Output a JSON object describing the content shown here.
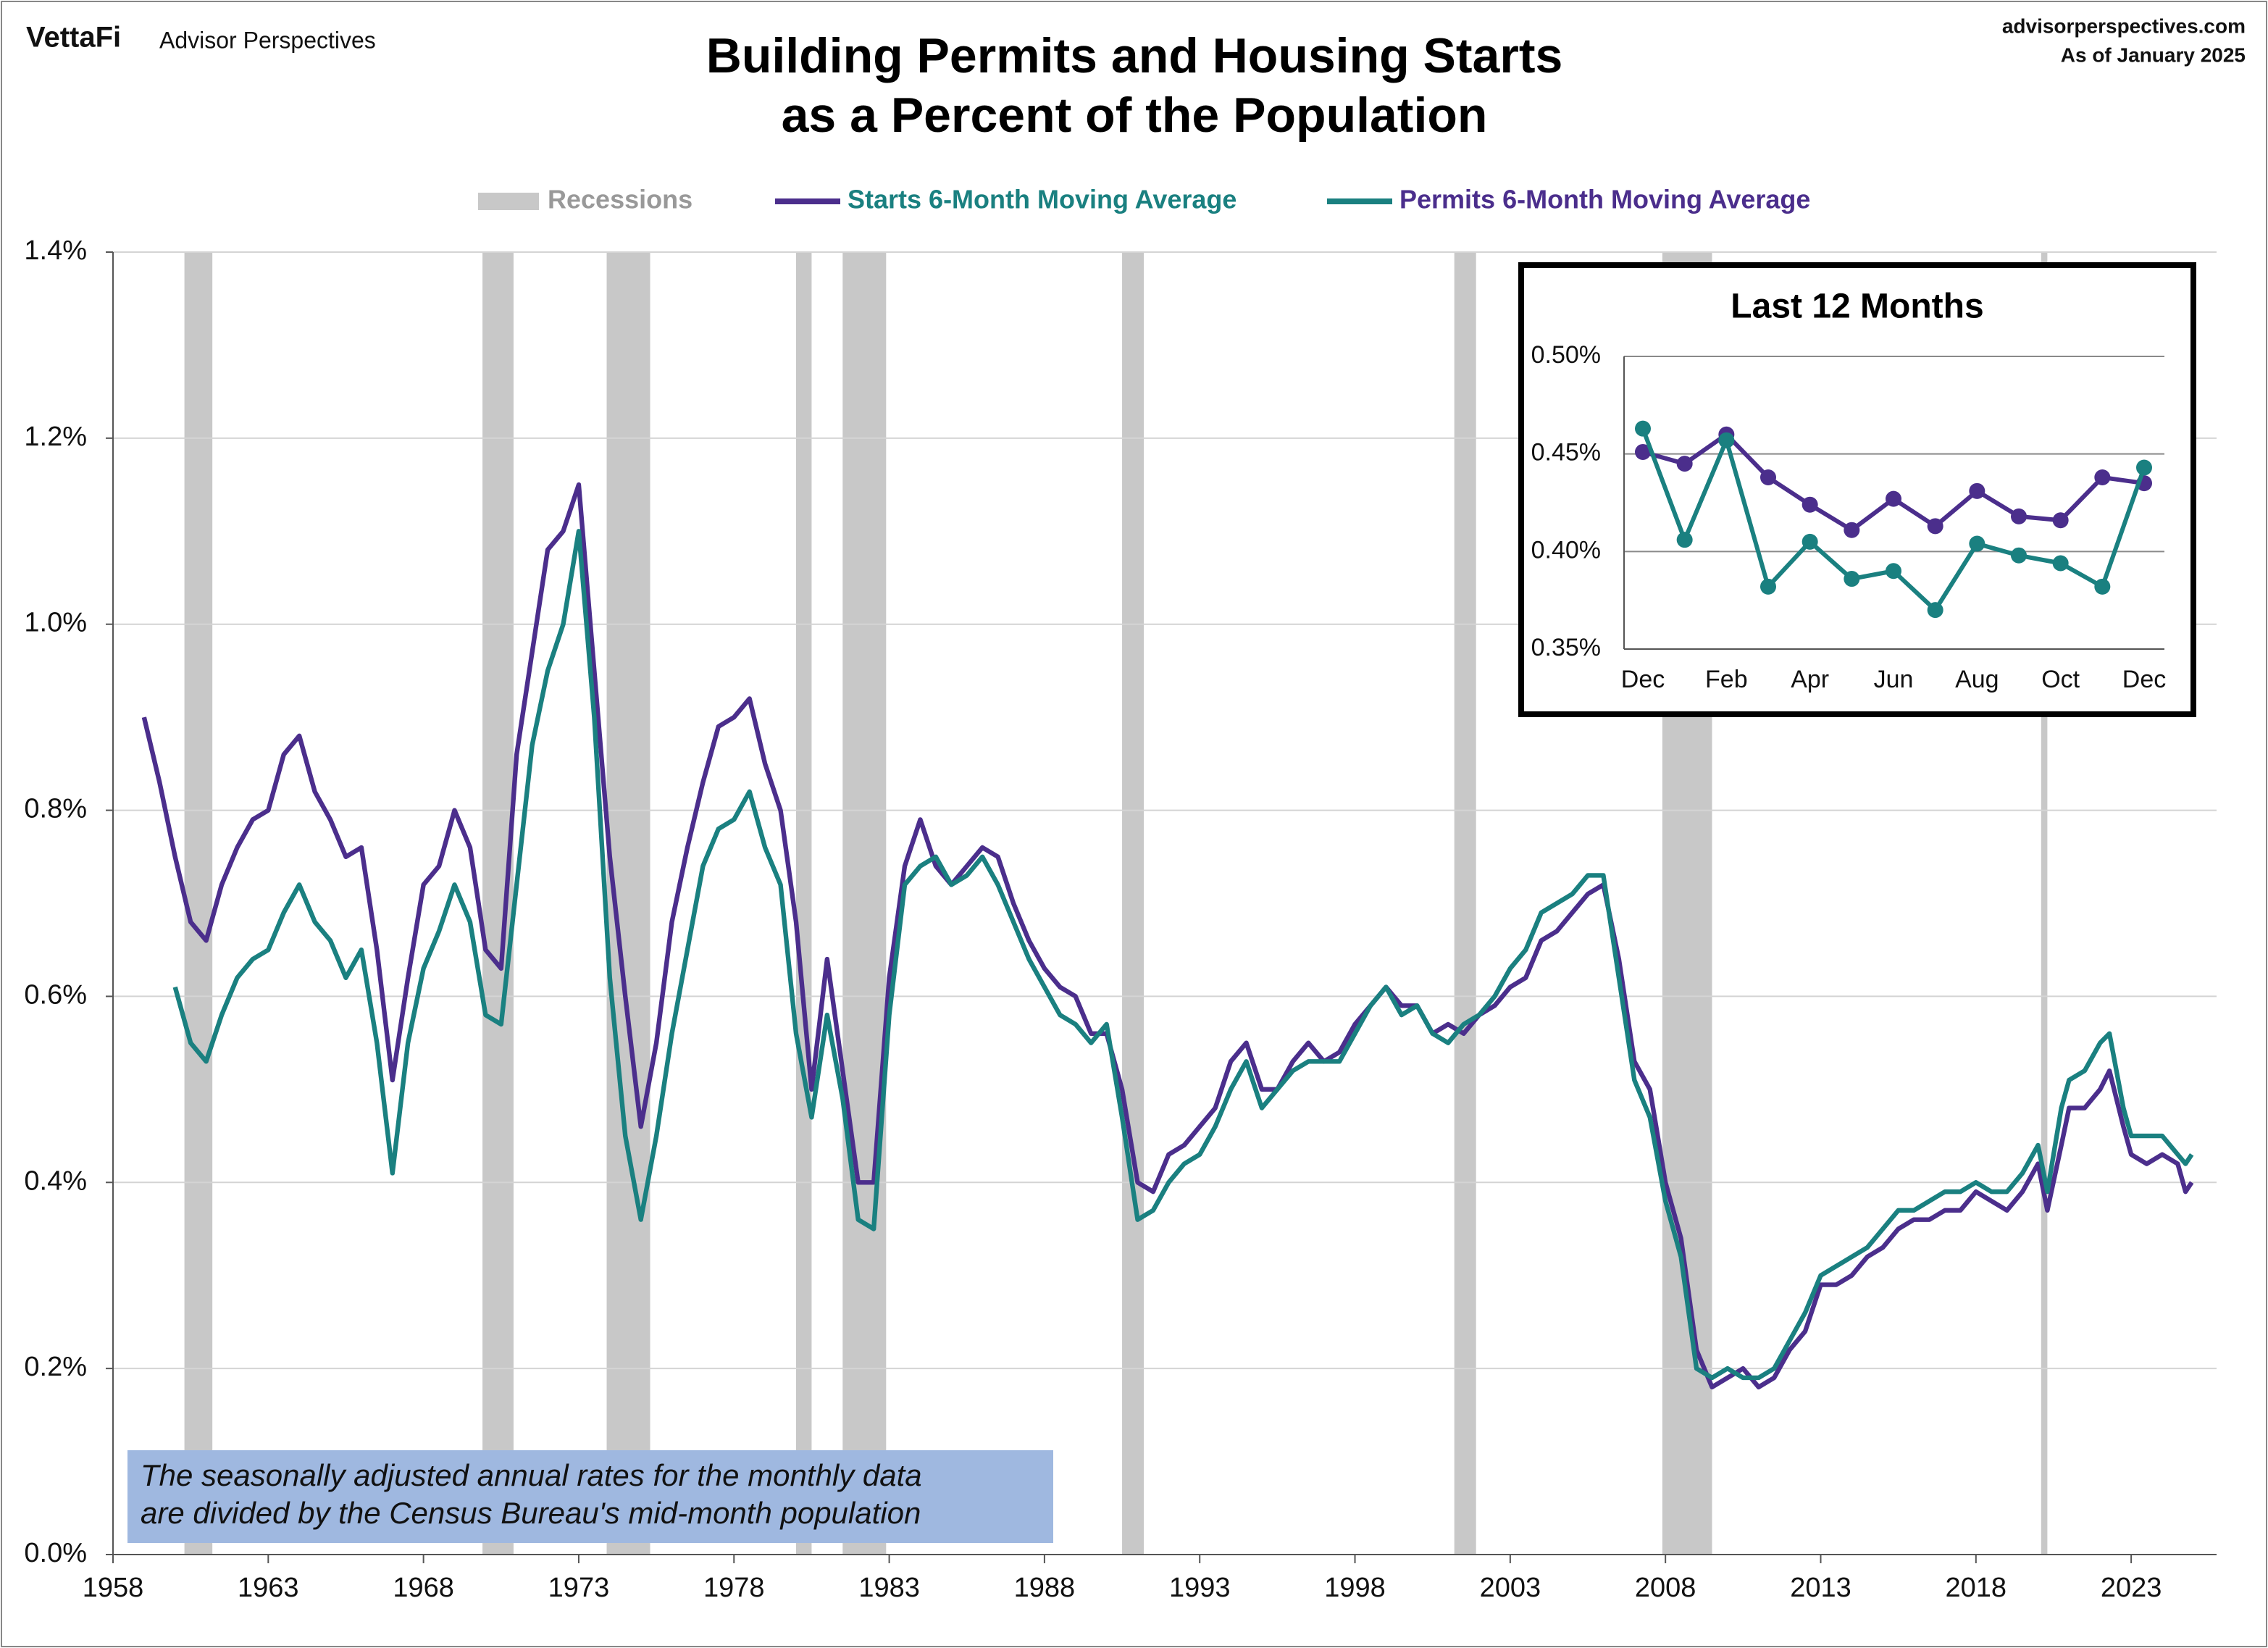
{
  "header": {
    "brand": "VettaFi",
    "publisher": "Advisor Perspectives",
    "site": "advisorperspectives.com",
    "date": "As of January 2025"
  },
  "chart_data": [
    {
      "type": "line",
      "title": [
        "Building Permits and Housing Starts",
        "as a Percent of the Population"
      ],
      "note": [
        "The seasonally adjusted annual rates for the monthly data",
        "are divided by the Census Bureau's mid-month population"
      ],
      "xlim": [
        1958,
        2025.75
      ],
      "xticks": [
        1958,
        1963,
        1968,
        1973,
        1978,
        1983,
        1988,
        1993,
        1998,
        2003,
        2008,
        2013,
        2018,
        2023
      ],
      "ylim": [
        0,
        1.4
      ],
      "yticks": [
        {
          "value": 0,
          "label": "0.0%"
        },
        {
          "value": 0.2,
          "label": "0.2%"
        },
        {
          "value": 0.4,
          "label": "0.4%"
        },
        {
          "value": 0.6,
          "label": "0.6%"
        },
        {
          "value": 0.8,
          "label": "0.8%"
        },
        {
          "value": 1.0,
          "label": "1.0%"
        },
        {
          "value": 1.2,
          "label": "1.2%"
        },
        {
          "value": 1.4,
          "label": "1.4%"
        }
      ],
      "grid": true,
      "legend": "top",
      "recessions": {
        "name": "Recessions",
        "color": "#c8c8c8",
        "spans": [
          [
            1960.3,
            1961.2
          ],
          [
            1969.9,
            1970.9
          ],
          [
            1973.9,
            1975.3
          ],
          [
            1980.0,
            1980.5
          ],
          [
            1981.5,
            1982.9
          ],
          [
            1990.5,
            1991.2
          ],
          [
            2001.2,
            2001.9
          ],
          [
            2007.9,
            2009.5
          ],
          [
            2020.1,
            2020.3
          ]
        ]
      },
      "series": [
        {
          "name": "Starts 6-Month Moving Average",
          "color": "#4b2e8c",
          "legend_text_color": "#1a8080",
          "x": [
            1959.0,
            1959.5,
            1960.0,
            1960.5,
            1961.0,
            1961.5,
            1962.0,
            1962.5,
            1963.0,
            1963.5,
            1964.0,
            1964.5,
            1965.0,
            1965.5,
            1966.0,
            1966.5,
            1967.0,
            1967.5,
            1968.0,
            1968.5,
            1969.0,
            1969.5,
            1970.0,
            1970.5,
            1971.0,
            1971.5,
            1972.0,
            1972.5,
            1973.0,
            1973.5,
            1974.0,
            1974.5,
            1975.0,
            1975.5,
            1976.0,
            1976.5,
            1977.0,
            1977.5,
            1978.0,
            1978.5,
            1979.0,
            1979.5,
            1980.0,
            1980.5,
            1981.0,
            1981.5,
            1982.0,
            1982.5,
            1983.0,
            1983.5,
            1984.0,
            1984.5,
            1985.0,
            1985.5,
            1986.0,
            1986.5,
            1987.0,
            1987.5,
            1988.0,
            1988.5,
            1989.0,
            1989.5,
            1990.0,
            1990.5,
            1991.0,
            1991.5,
            1992.0,
            1992.5,
            1993.0,
            1993.5,
            1994.0,
            1994.5,
            1995.0,
            1995.5,
            1996.0,
            1996.5,
            1997.0,
            1997.5,
            1998.0,
            1998.5,
            1999.0,
            1999.5,
            2000.0,
            2000.5,
            2001.0,
            2001.5,
            2002.0,
            2002.5,
            2003.0,
            2003.5,
            2004.0,
            2004.5,
            2005.0,
            2005.5,
            2006.0,
            2006.5,
            2007.0,
            2007.5,
            2008.0,
            2008.5,
            2009.0,
            2009.5,
            2010.0,
            2010.5,
            2011.0,
            2011.5,
            2012.0,
            2012.5,
            2013.0,
            2013.5,
            2014.0,
            2014.5,
            2015.0,
            2015.5,
            2016.0,
            2016.5,
            2017.0,
            2017.5,
            2018.0,
            2018.5,
            2019.0,
            2019.5,
            2020.0,
            2020.3,
            2020.75,
            2021.0,
            2021.5,
            2022.0,
            2022.3,
            2022.75,
            2023.0,
            2023.5,
            2024.0,
            2024.5,
            2024.75,
            2024.95
          ],
          "values": [
            0.9,
            0.83,
            0.75,
            0.68,
            0.66,
            0.72,
            0.76,
            0.79,
            0.8,
            0.86,
            0.88,
            0.82,
            0.79,
            0.75,
            0.76,
            0.65,
            0.51,
            0.62,
            0.72,
            0.74,
            0.8,
            0.76,
            0.65,
            0.63,
            0.86,
            0.97,
            1.08,
            1.1,
            1.15,
            0.95,
            0.75,
            0.6,
            0.46,
            0.55,
            0.68,
            0.76,
            0.83,
            0.89,
            0.9,
            0.92,
            0.85,
            0.8,
            0.68,
            0.5,
            0.64,
            0.52,
            0.4,
            0.4,
            0.62,
            0.74,
            0.79,
            0.74,
            0.72,
            0.74,
            0.76,
            0.75,
            0.7,
            0.66,
            0.63,
            0.61,
            0.6,
            0.56,
            0.56,
            0.5,
            0.4,
            0.39,
            0.43,
            0.44,
            0.46,
            0.48,
            0.53,
            0.55,
            0.5,
            0.5,
            0.53,
            0.55,
            0.53,
            0.54,
            0.57,
            0.59,
            0.61,
            0.59,
            0.59,
            0.56,
            0.57,
            0.56,
            0.58,
            0.59,
            0.61,
            0.62,
            0.66,
            0.67,
            0.69,
            0.71,
            0.72,
            0.64,
            0.53,
            0.5,
            0.4,
            0.34,
            0.22,
            0.18,
            0.19,
            0.2,
            0.18,
            0.19,
            0.22,
            0.24,
            0.29,
            0.29,
            0.3,
            0.32,
            0.33,
            0.35,
            0.36,
            0.36,
            0.37,
            0.37,
            0.39,
            0.38,
            0.37,
            0.39,
            0.42,
            0.37,
            0.44,
            0.48,
            0.48,
            0.5,
            0.52,
            0.46,
            0.43,
            0.42,
            0.43,
            0.42,
            0.39,
            0.4
          ]
        },
        {
          "name": "Permits 6-Month Moving Average",
          "color": "#1a8080",
          "legend_text_color": "#4b2e8c",
          "x": [
            1960.0,
            1960.5,
            1961.0,
            1961.5,
            1962.0,
            1962.5,
            1963.0,
            1963.5,
            1964.0,
            1964.5,
            1965.0,
            1965.5,
            1966.0,
            1966.5,
            1967.0,
            1967.5,
            1968.0,
            1968.5,
            1969.0,
            1969.5,
            1970.0,
            1970.5,
            1971.0,
            1971.5,
            1972.0,
            1972.5,
            1973.0,
            1973.5,
            1974.0,
            1974.5,
            1975.0,
            1975.5,
            1976.0,
            1976.5,
            1977.0,
            1977.5,
            1978.0,
            1978.5,
            1979.0,
            1979.5,
            1980.0,
            1980.5,
            1981.0,
            1981.5,
            1982.0,
            1982.5,
            1983.0,
            1983.5,
            1984.0,
            1984.5,
            1985.0,
            1985.5,
            1986.0,
            1986.5,
            1987.0,
            1987.5,
            1988.0,
            1988.5,
            1989.0,
            1989.5,
            1990.0,
            1990.5,
            1991.0,
            1991.5,
            1992.0,
            1992.5,
            1993.0,
            1993.5,
            1994.0,
            1994.5,
            1995.0,
            1995.5,
            1996.0,
            1996.5,
            1997.0,
            1997.5,
            1998.0,
            1998.5,
            1999.0,
            1999.5,
            2000.0,
            2000.5,
            2001.0,
            2001.5,
            2002.0,
            2002.5,
            2003.0,
            2003.5,
            2004.0,
            2004.5,
            2005.0,
            2005.5,
            2006.0,
            2006.5,
            2007.0,
            2007.5,
            2008.0,
            2008.5,
            2009.0,
            2009.5,
            2010.0,
            2010.5,
            2011.0,
            2011.5,
            2012.0,
            2012.5,
            2013.0,
            2013.5,
            2014.0,
            2014.5,
            2015.0,
            2015.5,
            2016.0,
            2016.5,
            2017.0,
            2017.5,
            2018.0,
            2018.5,
            2019.0,
            2019.5,
            2020.0,
            2020.3,
            2020.75,
            2021.0,
            2021.5,
            2022.0,
            2022.3,
            2022.75,
            2023.0,
            2023.5,
            2024.0,
            2024.5,
            2024.75,
            2024.95
          ],
          "values": [
            0.61,
            0.55,
            0.53,
            0.58,
            0.62,
            0.64,
            0.65,
            0.69,
            0.72,
            0.68,
            0.66,
            0.62,
            0.65,
            0.55,
            0.41,
            0.55,
            0.63,
            0.67,
            0.72,
            0.68,
            0.58,
            0.57,
            0.72,
            0.87,
            0.95,
            1.0,
            1.1,
            0.9,
            0.62,
            0.45,
            0.36,
            0.45,
            0.56,
            0.65,
            0.74,
            0.78,
            0.79,
            0.82,
            0.76,
            0.72,
            0.56,
            0.47,
            0.58,
            0.49,
            0.36,
            0.35,
            0.58,
            0.72,
            0.74,
            0.75,
            0.72,
            0.73,
            0.75,
            0.72,
            0.68,
            0.64,
            0.61,
            0.58,
            0.57,
            0.55,
            0.57,
            0.47,
            0.36,
            0.37,
            0.4,
            0.42,
            0.43,
            0.46,
            0.5,
            0.53,
            0.48,
            0.5,
            0.52,
            0.53,
            0.53,
            0.53,
            0.56,
            0.59,
            0.61,
            0.58,
            0.59,
            0.56,
            0.55,
            0.57,
            0.58,
            0.6,
            0.63,
            0.65,
            0.69,
            0.7,
            0.71,
            0.73,
            0.73,
            0.62,
            0.51,
            0.47,
            0.38,
            0.32,
            0.2,
            0.19,
            0.2,
            0.19,
            0.19,
            0.2,
            0.23,
            0.26,
            0.3,
            0.31,
            0.32,
            0.33,
            0.35,
            0.37,
            0.37,
            0.38,
            0.39,
            0.39,
            0.4,
            0.39,
            0.39,
            0.41,
            0.44,
            0.39,
            0.48,
            0.51,
            0.52,
            0.55,
            0.56,
            0.48,
            0.45,
            0.45,
            0.45,
            0.43,
            0.42,
            0.43
          ]
        }
      ]
    },
    {
      "type": "line",
      "title": "Last 12 Months",
      "categories": [
        "Dec",
        null,
        "Feb",
        null,
        "Apr",
        null,
        "Jun",
        null,
        "Aug",
        null,
        "Oct",
        null,
        "Dec"
      ],
      "ylim": [
        0.35,
        0.5
      ],
      "yticks": [
        {
          "value": 0.35,
          "label": "0.35%"
        },
        {
          "value": 0.4,
          "label": "0.40%"
        },
        {
          "value": 0.45,
          "label": "0.45%"
        },
        {
          "value": 0.5,
          "label": "0.50%"
        }
      ],
      "grid": true,
      "markers": true,
      "series": [
        {
          "color": "#4b2e8c",
          "values": [
            0.451,
            0.445,
            0.46,
            0.438,
            0.424,
            0.411,
            0.427,
            0.413,
            0.431,
            0.418,
            0.416,
            0.438,
            0.435
          ]
        },
        {
          "color": "#1a8080",
          "values": [
            0.463,
            0.406,
            0.457,
            0.382,
            0.405,
            0.386,
            0.39,
            0.37,
            0.404,
            0.398,
            0.394,
            0.382,
            0.443
          ]
        }
      ]
    }
  ]
}
